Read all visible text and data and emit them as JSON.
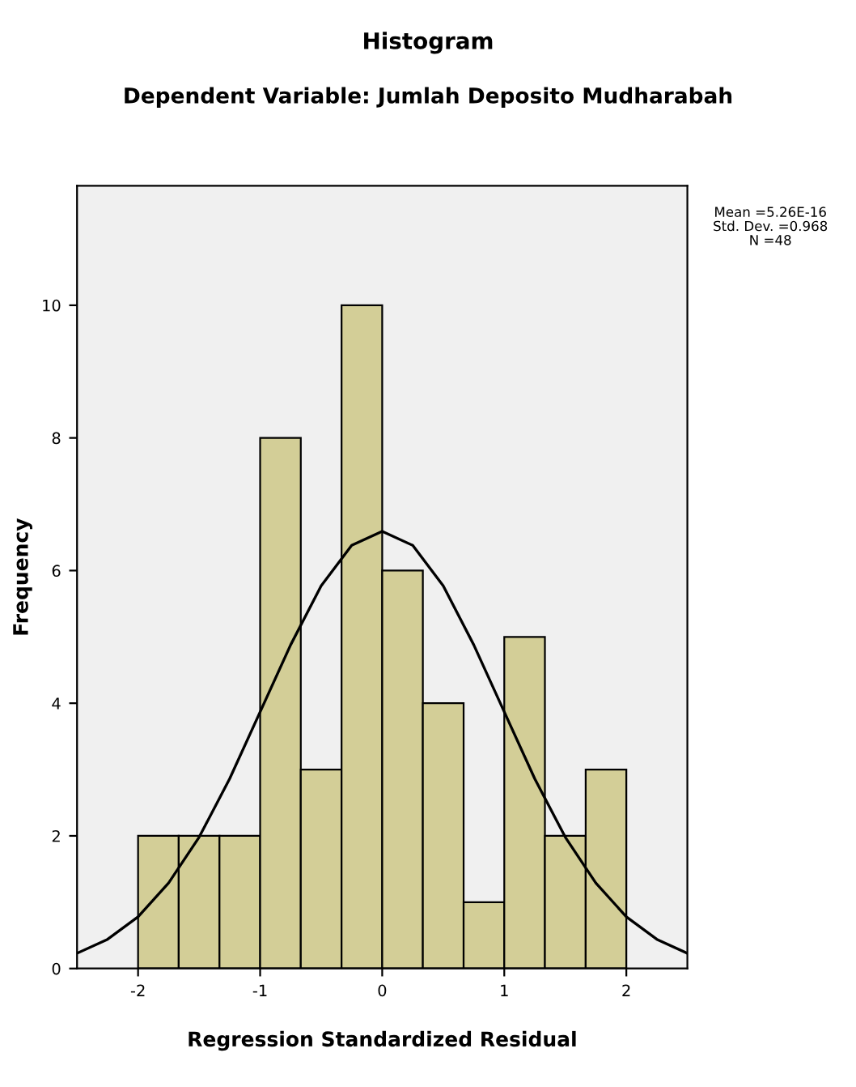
{
  "chart_data": {
    "type": "histogram",
    "title": "Histogram",
    "subtitle": "Dependent Variable: Jumlah Deposito Mudharabah",
    "xlabel": "Regression Standardized Residual",
    "ylabel": "Frequency",
    "bins": [
      -2,
      -1.667,
      -1.333,
      -1,
      -0.667,
      -0.333,
      0,
      0.333,
      0.667,
      1,
      1.333,
      1.667,
      2
    ],
    "values": [
      2,
      2,
      2,
      8,
      3,
      10,
      6,
      4,
      1,
      5,
      2,
      3
    ],
    "color": "#d3ce97",
    "series": [
      {
        "type": "line",
        "color": "#000000",
        "x": [
          -2.5,
          -2.25,
          -2,
          -1.75,
          -1.5,
          -1.25,
          -1,
          -0.75,
          -0.5,
          -0.25,
          0,
          0.25,
          0.5,
          0.75,
          1,
          1.25,
          1.5,
          1.75,
          2,
          2.25,
          2.5
        ],
        "values": [
          0.23,
          0.44,
          0.78,
          1.29,
          1.98,
          2.86,
          3.87,
          4.88,
          5.77,
          6.38,
          6.59,
          6.38,
          5.77,
          4.88,
          3.87,
          2.86,
          1.98,
          1.29,
          0.78,
          0.44,
          0.23
        ]
      }
    ],
    "xlim": [
      -2.5,
      2.5
    ],
    "xticks": [
      -2,
      -1,
      0,
      1,
      2
    ],
    "ylim": [
      0,
      11.8
    ],
    "yticks": [
      0,
      2,
      4,
      6,
      8,
      10
    ],
    "grid": false,
    "legend": false,
    "annotations": [
      "Mean =5.26E-16",
      "Std. Dev. =0.968",
      "N =48"
    ]
  }
}
